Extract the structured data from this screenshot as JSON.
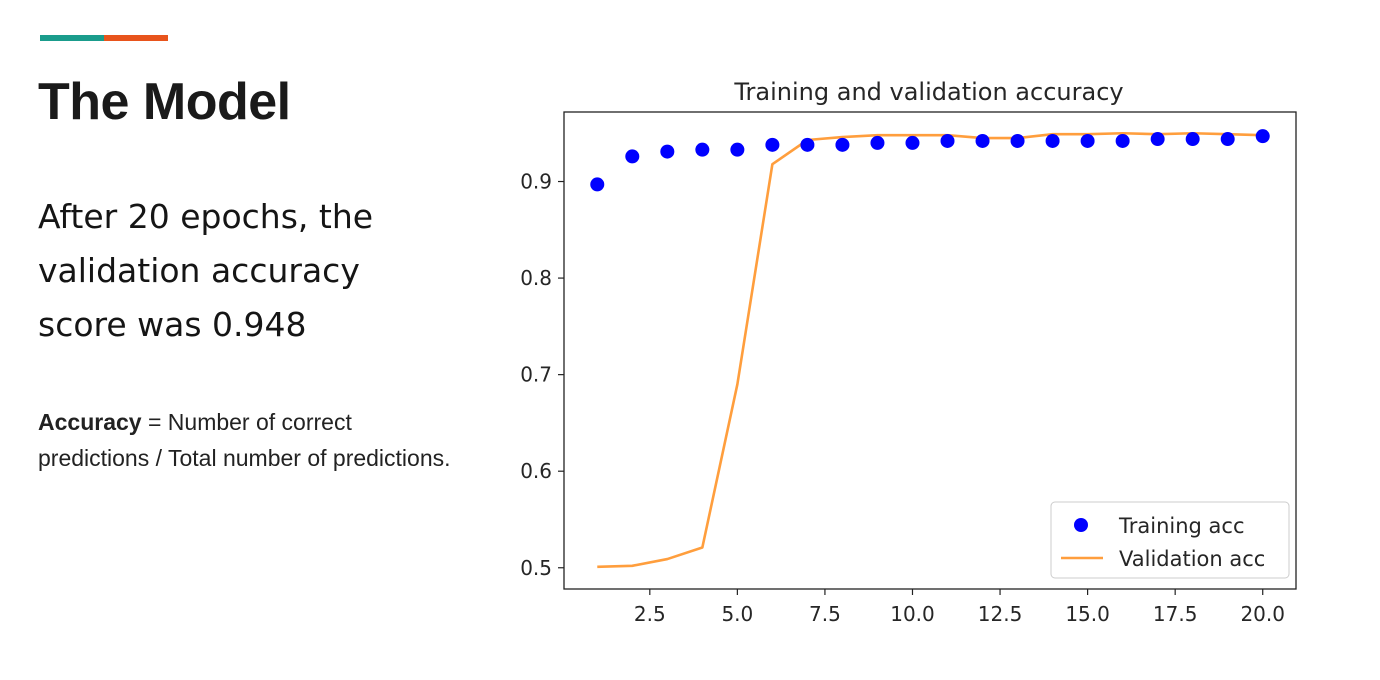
{
  "slide": {
    "title": "The Model",
    "lead": "After 20 epochs, the validation accuracy score was 0.948",
    "definition_term": "Accuracy",
    "definition_text": " = Number of correct predictions / Total  number of predictions.",
    "accent_colors": [
      "#1a9c8c",
      "#e8541c"
    ]
  },
  "chart_data": {
    "type": "line",
    "title": "Training and validation accuracy",
    "xlabel": "",
    "ylabel": "",
    "xlim": [
      0.05,
      20.95
    ],
    "ylim": [
      0.478,
      0.972
    ],
    "x_ticks": [
      2.5,
      5.0,
      7.5,
      10.0,
      12.5,
      15.0,
      17.5,
      20.0
    ],
    "x_tick_labels": [
      "2.5",
      "5.0",
      "7.5",
      "10.0",
      "12.5",
      "15.0",
      "17.5",
      "20.0"
    ],
    "y_ticks": [
      0.5,
      0.6,
      0.7,
      0.8,
      0.9
    ],
    "y_tick_labels": [
      "0.5",
      "0.6",
      "0.7",
      "0.8",
      "0.9"
    ],
    "grid": false,
    "legend_position": "lower-right",
    "x": [
      1,
      2,
      3,
      4,
      5,
      6,
      7,
      8,
      9,
      10,
      11,
      12,
      13,
      14,
      15,
      16,
      17,
      18,
      19,
      20
    ],
    "series": [
      {
        "name": "Training acc",
        "style": "markers",
        "color": "#0000ff",
        "values": [
          0.897,
          0.926,
          0.931,
          0.933,
          0.933,
          0.938,
          0.938,
          0.938,
          0.94,
          0.94,
          0.942,
          0.942,
          0.942,
          0.942,
          0.942,
          0.942,
          0.944,
          0.944,
          0.944,
          0.947
        ]
      },
      {
        "name": "Validation acc",
        "style": "line",
        "color": "#ff9e3d",
        "values": [
          0.501,
          0.502,
          0.509,
          0.521,
          0.69,
          0.918,
          0.943,
          0.946,
          0.948,
          0.948,
          0.948,
          0.945,
          0.945,
          0.949,
          0.949,
          0.95,
          0.949,
          0.95,
          0.949,
          0.948
        ]
      }
    ]
  }
}
